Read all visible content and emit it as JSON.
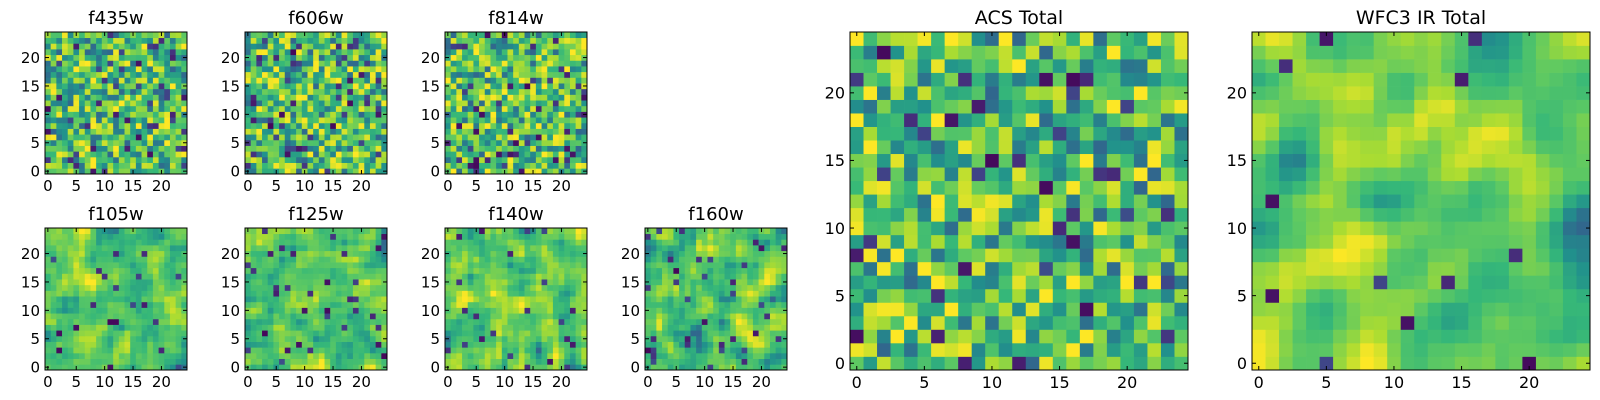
{
  "chart_data": [
    {
      "type": "heatmap",
      "title": "f435w",
      "nx": 25,
      "ny": 25,
      "colormap": "viridis",
      "xticks": [
        0,
        5,
        10,
        15,
        20
      ],
      "yticks": [
        0,
        5,
        10,
        15,
        20
      ],
      "seed": 11,
      "smooth": 0,
      "dark_fraction": 0.07
    },
    {
      "type": "heatmap",
      "title": "f606w",
      "nx": 25,
      "ny": 25,
      "colormap": "viridis",
      "xticks": [
        0,
        5,
        10,
        15,
        20
      ],
      "yticks": [
        0,
        5,
        10,
        15,
        20
      ],
      "seed": 23,
      "smooth": 0,
      "dark_fraction": 0.09
    },
    {
      "type": "heatmap",
      "title": "f814w",
      "nx": 25,
      "ny": 25,
      "colormap": "viridis",
      "xticks": [
        0,
        5,
        10,
        15,
        20
      ],
      "yticks": [
        0,
        5,
        10,
        15,
        20
      ],
      "seed": 37,
      "smooth": 0,
      "dark_fraction": 0.08
    },
    {
      "type": "heatmap",
      "title": "f105w",
      "nx": 25,
      "ny": 25,
      "colormap": "viridis",
      "xticks": [
        0,
        5,
        10,
        15,
        20
      ],
      "yticks": [
        0,
        5,
        10,
        15,
        20
      ],
      "seed": 41,
      "smooth": 1,
      "dark_fraction": 0.05
    },
    {
      "type": "heatmap",
      "title": "f125w",
      "nx": 25,
      "ny": 25,
      "colormap": "viridis",
      "xticks": [
        0,
        5,
        10,
        15,
        20
      ],
      "yticks": [
        0,
        5,
        10,
        15,
        20
      ],
      "seed": 53,
      "smooth": 1,
      "dark_fraction": 0.05
    },
    {
      "type": "heatmap",
      "title": "f140w",
      "nx": 25,
      "ny": 25,
      "colormap": "viridis",
      "xticks": [
        0,
        5,
        10,
        15,
        20
      ],
      "yticks": [
        0,
        5,
        10,
        15,
        20
      ],
      "seed": 67,
      "smooth": 1,
      "dark_fraction": 0.05
    },
    {
      "type": "heatmap",
      "title": "f160w",
      "nx": 25,
      "ny": 25,
      "colormap": "viridis",
      "xticks": [
        0,
        5,
        10,
        15,
        20
      ],
      "yticks": [
        0,
        5,
        10,
        15,
        20
      ],
      "seed": 79,
      "smooth": 1,
      "dark_fraction": 0.05
    },
    {
      "type": "heatmap",
      "title": "ACS Total",
      "nx": 25,
      "ny": 25,
      "colormap": "viridis",
      "xticks": [
        0,
        5,
        10,
        15,
        20
      ],
      "yticks": [
        0,
        5,
        10,
        15,
        20
      ],
      "seed": 97,
      "smooth": 0,
      "dark_fraction": 0.05
    },
    {
      "type": "heatmap",
      "title": "WFC3 IR Total",
      "nx": 25,
      "ny": 25,
      "colormap": "viridis",
      "xticks": [
        0,
        5,
        10,
        15,
        20
      ],
      "yticks": [
        0,
        5,
        10,
        15,
        20
      ],
      "seed": 113,
      "smooth": 2,
      "dark_fraction": 0.03
    }
  ]
}
